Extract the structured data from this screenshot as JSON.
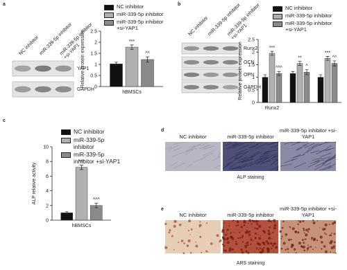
{
  "panels": {
    "a": {
      "label": "a",
      "lanes": [
        "NC inhibitor",
        "miR-339-5p inhibitor",
        [
          "miR-339-5p inhibitor",
          "+si-YAP1"
        ]
      ],
      "rows": [
        "YAP1",
        "GAPDH"
      ]
    },
    "b": {
      "label": "b",
      "lanes": [
        "NC inhibitor",
        "miR-339-5p inhibitor",
        [
          "miR-339-5p inhibitor",
          "+si-YAP1"
        ]
      ],
      "rows": [
        "Runx2",
        "OCN",
        "OPN",
        "GAPDH"
      ]
    },
    "c": {
      "label": "c"
    },
    "d": {
      "label": "d",
      "columns": [
        "NC inhibitor",
        "miR-339-5p inhibitor",
        "miR-339-5p inhibitor +si-YAP1"
      ],
      "caption": "ALP staining"
    },
    "e": {
      "label": "e",
      "columns": [
        "NC inhibitor",
        "miR-339-5p inhibitor",
        "miR-339-5p inhibitor +si-YAP1"
      ],
      "caption": "ARS staining"
    }
  },
  "chart_data": [
    {
      "type": "bar",
      "y_label": "Relative protein expression",
      "categories": [
        "hBMSCs"
      ],
      "ylim": [
        0,
        2.5
      ],
      "yticks": [
        0,
        0.5,
        1,
        1.5,
        2,
        2.5
      ],
      "series": [
        {
          "name": "NC inhibitor",
          "color": "#111111",
          "values": [
            1.02
          ],
          "errors": [
            0.08
          ]
        },
        {
          "name": "miR-339-5p inhibitor",
          "color": "#b0b0b0",
          "values": [
            1.78
          ],
          "errors": [
            0.1
          ],
          "annotations": [
            "***"
          ]
        },
        {
          "name": "miR-339-5p inhibitor +si-YAP1",
          "color": "#8a8a8a",
          "values": [
            1.22
          ],
          "errors": [
            0.12
          ],
          "annotations": [
            "^^"
          ]
        }
      ]
    },
    {
      "type": "bar",
      "y_label": "Relative protein expression",
      "categories": [
        "Runx2",
        null,
        null
      ],
      "ylim": [
        0,
        2.5
      ],
      "yticks": [
        0,
        0.5,
        1,
        1.5,
        2,
        2.5
      ],
      "series": [
        {
          "name": "NC inhibitor",
          "color": "#111111",
          "values": [
            1.0,
            1.15,
            1.0
          ],
          "errors": [
            0.1,
            0.08,
            0.1
          ]
        },
        {
          "name": "miR-339-5p inhibitor",
          "color": "#b0b0b0",
          "values": [
            1.95,
            1.55,
            1.75
          ],
          "errors": [
            0.08,
            0.08,
            0.08
          ],
          "annotations": [
            "***",
            "**",
            "***"
          ]
        },
        {
          "name": "miR-339-5p inhibitor +si-YAP1",
          "color": "#8a8a8a",
          "values": [
            1.15,
            1.2,
            1.55
          ],
          "errors": [
            0.08,
            0.1,
            0.1
          ],
          "annotations": [
            "^^^",
            "^",
            "^^"
          ]
        }
      ]
    },
    {
      "type": "bar",
      "y_label": "ALP relative activity",
      "categories": [
        "hBMSCs"
      ],
      "ylim": [
        0,
        10
      ],
      "yticks": [
        0,
        2,
        4,
        6,
        8,
        10
      ],
      "series": [
        {
          "name": "NC inhibitor",
          "color": "#111111",
          "values": [
            1.0
          ],
          "errors": [
            0.15
          ]
        },
        {
          "name": "miR-339-5p inhibitor",
          "color": "#b0b0b0",
          "values": [
            7.2
          ],
          "errors": [
            0.3
          ],
          "annotations": [
            "***"
          ]
        },
        {
          "name": "miR-339-5p inhibitor +si-YAP1",
          "color": "#8a8a8a",
          "values": [
            2.0
          ],
          "errors": [
            0.3
          ],
          "annotations": [
            "^^^"
          ]
        }
      ]
    }
  ]
}
